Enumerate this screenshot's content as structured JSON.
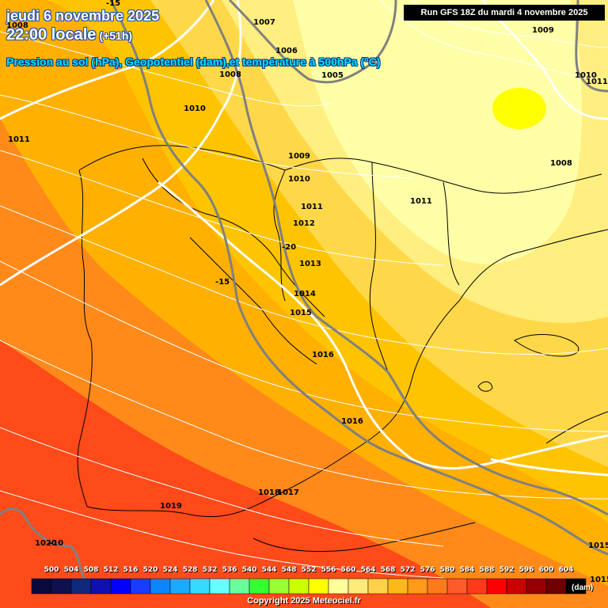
{
  "header": {
    "date": "jeudi 6 novembre 2025",
    "time": "22:00 locale",
    "lead": "(+51h)",
    "subtitle": "Pression au sol (hPa), Geopotentiel (dam),et température à 500hPa (°C)",
    "run": "Run GFS 18Z du mardi 4 novembre 2025"
  },
  "isobar_labels": [
    "1008",
    "1007",
    "1006",
    "1005",
    "1009",
    "1010",
    "1011",
    "1010",
    "1008",
    "1009",
    "1010",
    "1011",
    "1008",
    "1011",
    "1011",
    "1012",
    "1013",
    "1014",
    "1015",
    "1016",
    "1016",
    "1018",
    "1017",
    "1019",
    "1020",
    "1015",
    "1015"
  ],
  "temp_labels": [
    "-15",
    "-20",
    "-15",
    "-10"
  ],
  "legend": {
    "values": [
      "500",
      "504",
      "508",
      "512",
      "516",
      "520",
      "524",
      "528",
      "532",
      "536",
      "540",
      "544",
      "548",
      "552",
      "556",
      "560",
      "564",
      "568",
      "572",
      "576",
      "580",
      "584",
      "588",
      "592",
      "596",
      "600",
      "604"
    ],
    "colors": [
      "#0a0a3a",
      "#10104f",
      "#10287a",
      "#1010b0",
      "#0000ff",
      "#1a3cff",
      "#0a86ff",
      "#1aaaff",
      "#33dcff",
      "#66ffff",
      "#66ff99",
      "#33ff33",
      "#99ff33",
      "#ccff00",
      "#ffff00",
      "#ffff99",
      "#ffeb7a",
      "#ffd24a",
      "#ffb81a",
      "#ff9a1a",
      "#ff7a1a",
      "#ff5a2a",
      "#ff3a1a",
      "#ff0000",
      "#c80000",
      "#960000",
      "#6e0000",
      "#000000"
    ],
    "unit": "(dam)"
  },
  "copyright": "Copyright 2025 Meteociel.fr"
}
